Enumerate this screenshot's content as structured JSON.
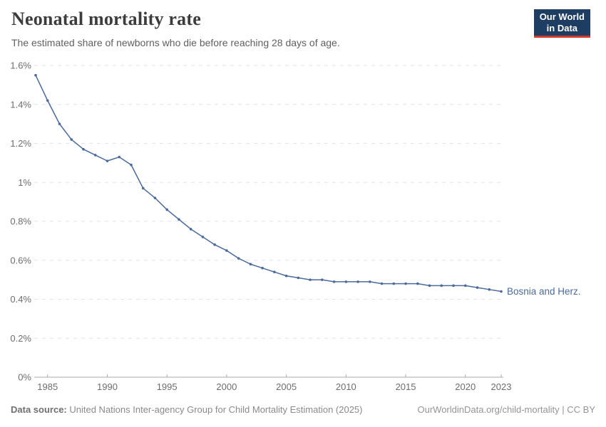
{
  "header": {
    "title": "Neonatal mortality rate",
    "subtitle": "The estimated share of newborns who die before reaching 28 days of age.",
    "logo_line1": "Our World",
    "logo_line2": "in Data"
  },
  "footer": {
    "source_label": "Data source:",
    "source_text": " United Nations Inter-agency Group for Child Mortality Estimation (2025)",
    "link_text": "OurWorldinData.org/child-mortality | CC BY"
  },
  "colors": {
    "line": "#4C6A9C",
    "entity_label": "#4C6A9C",
    "grid": "#e3e3e3",
    "axis": "#ababab",
    "tick_label": "#6d6d6d",
    "logo_bg": "#1d3d63",
    "logo_red": "#cf3a2c"
  },
  "chart_data": {
    "type": "line",
    "title": "Neonatal mortality rate",
    "subtitle": "The estimated share of newborns who die before reaching 28 days of age.",
    "unit": "%",
    "grid": "horizontal dashed",
    "legend_position": "label at end of line",
    "entity_label": "Bosnia and Herz.",
    "xlim": [
      1984,
      2023
    ],
    "ylim": [
      0,
      1.6
    ],
    "yticks": [
      0,
      0.2,
      0.4,
      0.6,
      0.8,
      1.0,
      1.2,
      1.4,
      1.6
    ],
    "ytick_labels": [
      "0%",
      "0.2%",
      "0.4%",
      "0.6%",
      "0.8%",
      "1%",
      "1.2%",
      "1.4%",
      "1.6%"
    ],
    "xticks": [
      1985,
      1990,
      1995,
      2000,
      2005,
      2010,
      2015,
      2020,
      2023
    ],
    "series": [
      {
        "name": "Bosnia and Herz.",
        "x": [
          1984,
          1985,
          1986,
          1987,
          1988,
          1989,
          1990,
          1991,
          1992,
          1993,
          1994,
          1995,
          1996,
          1997,
          1998,
          1999,
          2000,
          2001,
          2002,
          2003,
          2004,
          2005,
          2006,
          2007,
          2008,
          2009,
          2010,
          2011,
          2012,
          2013,
          2014,
          2015,
          2016,
          2017,
          2018,
          2019,
          2020,
          2021,
          2022,
          2023
        ],
        "values": [
          1.55,
          1.42,
          1.3,
          1.22,
          1.17,
          1.14,
          1.11,
          1.13,
          1.09,
          0.97,
          0.92,
          0.86,
          0.81,
          0.76,
          0.72,
          0.68,
          0.65,
          0.61,
          0.58,
          0.56,
          0.54,
          0.52,
          0.51,
          0.5,
          0.5,
          0.49,
          0.49,
          0.49,
          0.49,
          0.48,
          0.48,
          0.48,
          0.48,
          0.47,
          0.47,
          0.47,
          0.47,
          0.46,
          0.45,
          0.44
        ]
      }
    ]
  }
}
